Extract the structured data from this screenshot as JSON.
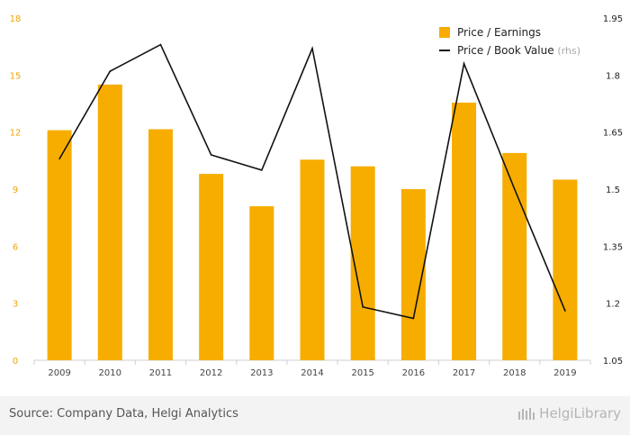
{
  "chart_data": {
    "type": "bar",
    "categories": [
      "2009",
      "2010",
      "2011",
      "2012",
      "2013",
      "2014",
      "2015",
      "2016",
      "2017",
      "2018",
      "2019"
    ],
    "series": [
      {
        "name": "Price / Earnings",
        "type": "bar",
        "axis": "left",
        "color": "#f7ad00",
        "values": [
          12.1,
          14.5,
          12.15,
          9.8,
          8.1,
          10.55,
          10.2,
          9.0,
          13.55,
          10.9,
          9.5
        ]
      },
      {
        "name": "Price / Book Value",
        "name_suffix": "(rhs)",
        "type": "line",
        "axis": "right",
        "color": "#111111",
        "values": [
          1.58,
          1.81,
          1.88,
          1.59,
          1.55,
          1.87,
          1.19,
          1.16,
          1.83,
          1.5,
          1.18
        ]
      }
    ],
    "ylim_left": [
      0,
      18
    ],
    "yticks_left": [
      "0",
      "3",
      "6",
      "9",
      "12",
      "15",
      "18"
    ],
    "ylim_right": [
      1.05,
      1.95
    ],
    "yticks_right": [
      "1.05",
      "1.2",
      "1.35",
      "1.5",
      "1.65",
      "1.8",
      "1.95"
    ],
    "legend_position": "top-right",
    "grid": false
  },
  "footer": {
    "source": "Source: Company Data, Helgi Analytics",
    "brand": "HelgiLibrary"
  }
}
